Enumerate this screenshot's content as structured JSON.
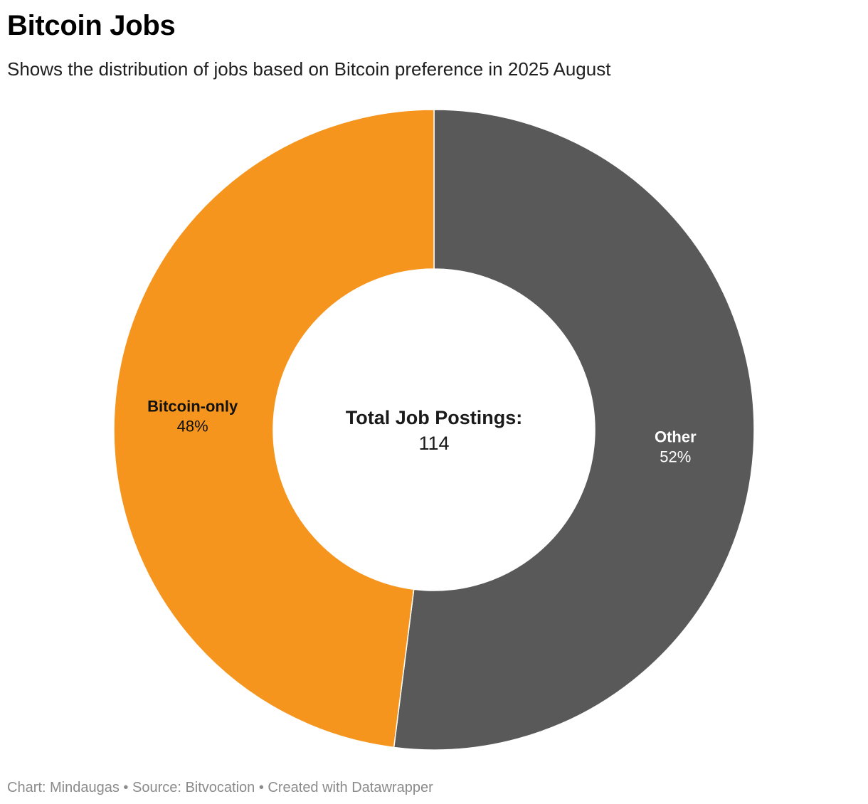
{
  "header": {
    "title": "Bitcoin Jobs",
    "subtitle": "Shows the distribution of jobs based on Bitcoin preference in 2025 August"
  },
  "center": {
    "label": "Total Job Postings:",
    "value": "114"
  },
  "footer": {
    "credit": "Chart: Mindaugas • Source: Bitvocation • Created with Datawrapper"
  },
  "chart_data": {
    "type": "pie",
    "title": "Bitcoin Jobs",
    "subtitle": "Shows the distribution of jobs based on Bitcoin preference in 2025 August",
    "donut": true,
    "total": 114,
    "slices": [
      {
        "label": "Other",
        "percent_label": "52%",
        "value": 52,
        "color": "#595959",
        "text_color": "#ffffff"
      },
      {
        "label": "Bitcoin-only",
        "percent_label": "48%",
        "value": 48,
        "color": "#f5951d",
        "text_color": "#111111"
      }
    ]
  }
}
